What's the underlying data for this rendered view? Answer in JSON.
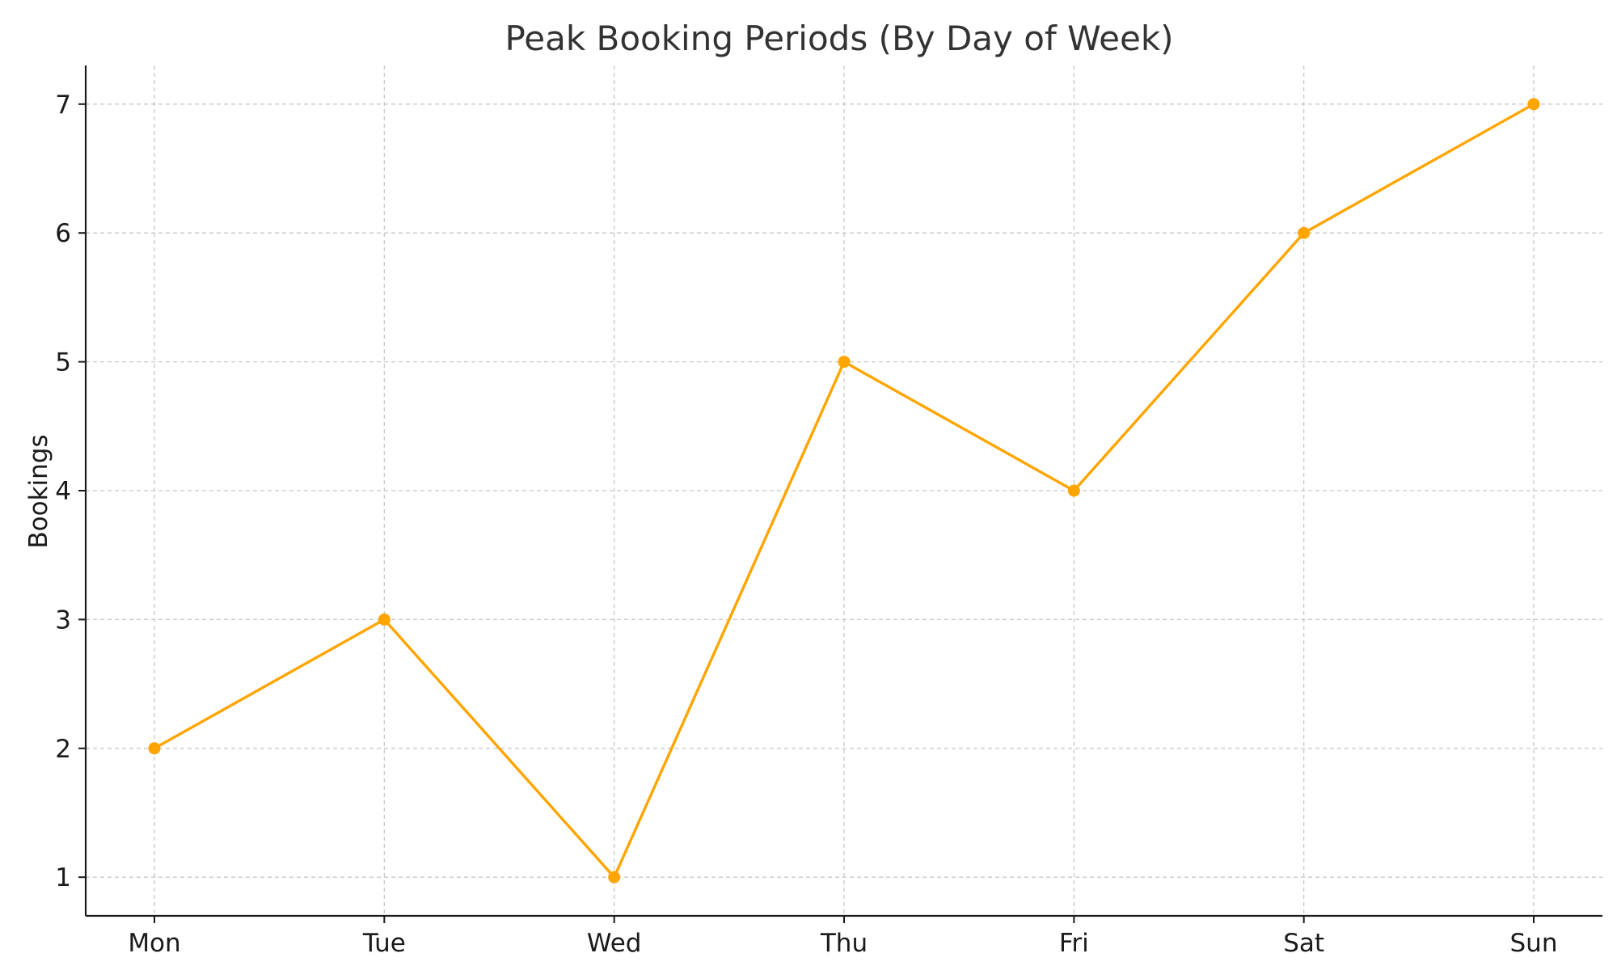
{
  "chart_data": {
    "type": "line",
    "title": "Peak Booking Periods (By Day of Week)",
    "xlabel": "",
    "ylabel": "Bookings",
    "categories": [
      "Mon",
      "Tue",
      "Wed",
      "Thu",
      "Fri",
      "Sat",
      "Sun"
    ],
    "series": [
      {
        "values": [
          2,
          3,
          1,
          5,
          4,
          6,
          7
        ],
        "color": "#FFA500",
        "marker": "circle"
      }
    ],
    "yticks": [
      1,
      2,
      3,
      4,
      5,
      6,
      7
    ],
    "ylim": [
      0.7,
      7.3
    ],
    "grid": true,
    "legend": "none"
  }
}
